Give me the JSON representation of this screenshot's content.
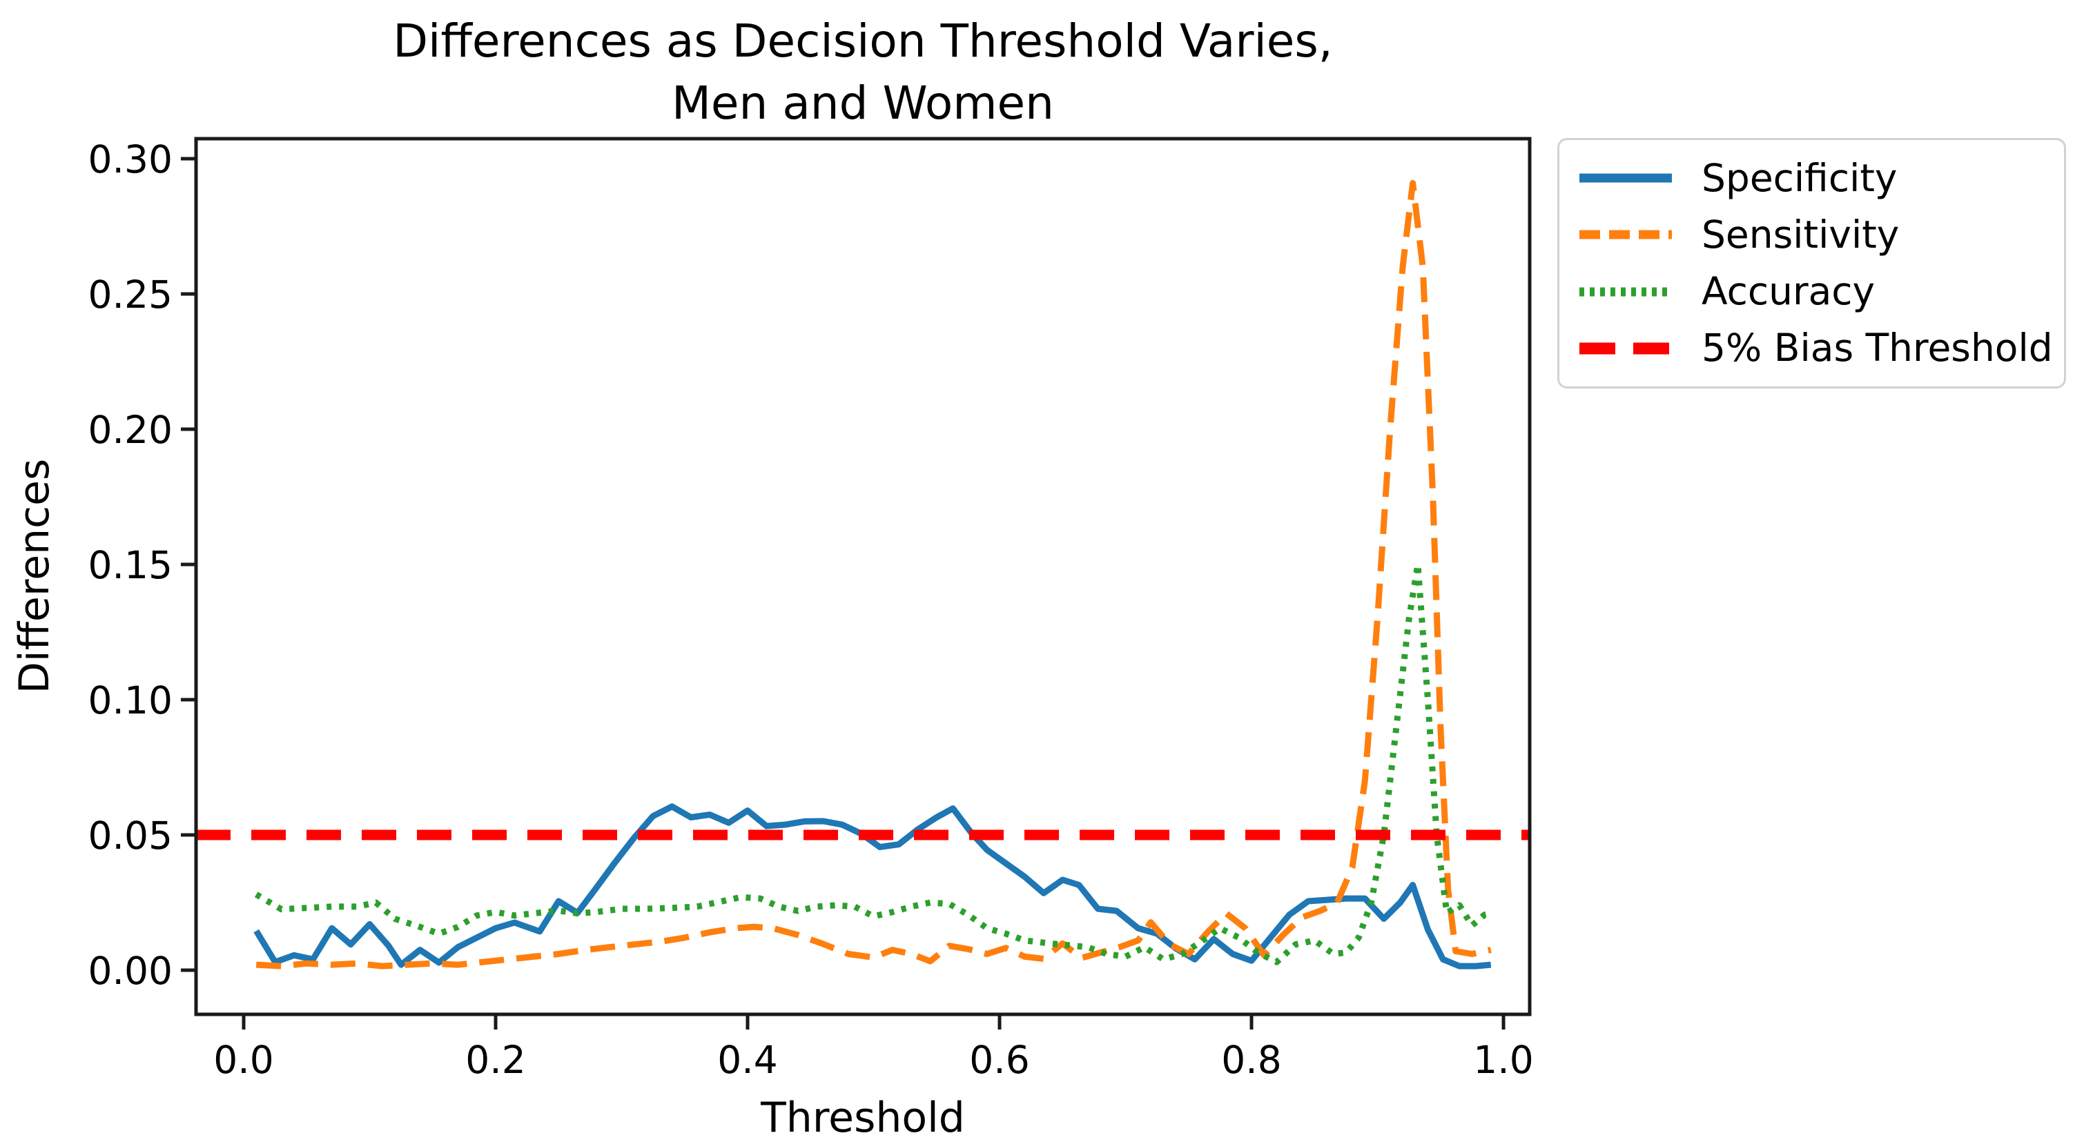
{
  "figure": {
    "title_line1": "Differences as Decision Threshold Varies,",
    "title_line2": "Men and Women",
    "xlabel": "Threshold",
    "ylabel": "Differences"
  },
  "colors": {
    "specificity": "#1f77b4",
    "sensitivity": "#ff7f0e",
    "accuracy": "#2ca02c",
    "bias_threshold": "#ff0000",
    "axis": "#1a1a1a",
    "legend_border": "#d2d2d2"
  },
  "legend": {
    "items": [
      {
        "label": "Specificity",
        "color": "#1f77b4",
        "style": "solid"
      },
      {
        "label": "Sensitivity",
        "color": "#ff7f0e",
        "style": "dashed"
      },
      {
        "label": "Accuracy",
        "color": "#2ca02c",
        "style": "dotted"
      },
      {
        "label": "5% Bias Threshold",
        "color": "#ff0000",
        "style": "dashed-bold"
      }
    ]
  },
  "chart_data": {
    "type": "line",
    "title": "Differences as Decision Threshold Varies, Men and Women",
    "xlabel": "Threshold",
    "ylabel": "Differences",
    "xlim": [
      -0.0378,
      1.0208
    ],
    "ylim": [
      -0.01633,
      0.3074
    ],
    "xticks": [
      0.0,
      0.2,
      0.4,
      0.6,
      0.8,
      1.0
    ],
    "xtick_labels": [
      "0.0",
      "0.2",
      "0.4",
      "0.6",
      "0.8",
      "1.0"
    ],
    "yticks": [
      0.0,
      0.05,
      0.1,
      0.15,
      0.2,
      0.25,
      0.3
    ],
    "ytick_labels": [
      "0.00",
      "0.05",
      "0.10",
      "0.15",
      "0.20",
      "0.25",
      "0.30"
    ],
    "grid": false,
    "legend_position": "outside-upper-right",
    "threshold_line": {
      "name": "5% Bias Threshold",
      "y": 0.05,
      "color": "#ff0000",
      "style": "dashed-bold"
    },
    "series": [
      {
        "name": "Specificity",
        "color": "#1f77b4",
        "style": "solid",
        "points": [
          [
            0.01,
            0.0145
          ],
          [
            0.025,
            0.003
          ],
          [
            0.04,
            0.0055
          ],
          [
            0.055,
            0.004
          ],
          [
            0.07,
            0.0155
          ],
          [
            0.085,
            0.0095
          ],
          [
            0.1,
            0.017
          ],
          [
            0.115,
            0.009
          ],
          [
            0.125,
            0.002
          ],
          [
            0.14,
            0.0075
          ],
          [
            0.155,
            0.0028
          ],
          [
            0.17,
            0.0085
          ],
          [
            0.185,
            0.012
          ],
          [
            0.2,
            0.0155
          ],
          [
            0.215,
            0.0176
          ],
          [
            0.235,
            0.0143
          ],
          [
            0.25,
            0.0255
          ],
          [
            0.265,
            0.0212
          ],
          [
            0.28,
            0.0305
          ],
          [
            0.295,
            0.04
          ],
          [
            0.31,
            0.049
          ],
          [
            0.325,
            0.057
          ],
          [
            0.34,
            0.0605
          ],
          [
            0.355,
            0.0565
          ],
          [
            0.37,
            0.0575
          ],
          [
            0.385,
            0.0545
          ],
          [
            0.4,
            0.059
          ],
          [
            0.415,
            0.0533
          ],
          [
            0.43,
            0.0538
          ],
          [
            0.445,
            0.055
          ],
          [
            0.46,
            0.0551
          ],
          [
            0.475,
            0.0538
          ],
          [
            0.49,
            0.0505
          ],
          [
            0.505,
            0.0455
          ],
          [
            0.52,
            0.0465
          ],
          [
            0.535,
            0.052
          ],
          [
            0.55,
            0.0565
          ],
          [
            0.563,
            0.0598
          ],
          [
            0.578,
            0.0505
          ],
          [
            0.59,
            0.0445
          ],
          [
            0.605,
            0.0395
          ],
          [
            0.62,
            0.0345
          ],
          [
            0.635,
            0.0285
          ],
          [
            0.65,
            0.0334
          ],
          [
            0.663,
            0.0315
          ],
          [
            0.678,
            0.0227
          ],
          [
            0.693,
            0.0219
          ],
          [
            0.71,
            0.0155
          ],
          [
            0.725,
            0.0135
          ],
          [
            0.74,
            0.008
          ],
          [
            0.755,
            0.004
          ],
          [
            0.77,
            0.0115
          ],
          [
            0.785,
            0.006
          ],
          [
            0.8,
            0.0035
          ],
          [
            0.815,
            0.012
          ],
          [
            0.83,
            0.0205
          ],
          [
            0.845,
            0.0255
          ],
          [
            0.86,
            0.026
          ],
          [
            0.875,
            0.0265
          ],
          [
            0.89,
            0.0265
          ],
          [
            0.905,
            0.019
          ],
          [
            0.918,
            0.025
          ],
          [
            0.928,
            0.0315
          ],
          [
            0.94,
            0.015
          ],
          [
            0.952,
            0.004
          ],
          [
            0.965,
            0.0015
          ],
          [
            0.978,
            0.0015
          ],
          [
            0.99,
            0.002
          ]
        ]
      },
      {
        "name": "Sensitivity",
        "color": "#ff7f0e",
        "style": "dashed",
        "points": [
          [
            0.01,
            0.002
          ],
          [
            0.03,
            0.0015
          ],
          [
            0.05,
            0.0025
          ],
          [
            0.07,
            0.002
          ],
          [
            0.09,
            0.0025
          ],
          [
            0.11,
            0.0015
          ],
          [
            0.13,
            0.002
          ],
          [
            0.15,
            0.0025
          ],
          [
            0.17,
            0.002
          ],
          [
            0.19,
            0.003
          ],
          [
            0.21,
            0.004
          ],
          [
            0.23,
            0.005
          ],
          [
            0.25,
            0.006
          ],
          [
            0.27,
            0.0074
          ],
          [
            0.29,
            0.0085
          ],
          [
            0.31,
            0.0095
          ],
          [
            0.33,
            0.0105
          ],
          [
            0.35,
            0.012
          ],
          [
            0.37,
            0.014
          ],
          [
            0.39,
            0.0155
          ],
          [
            0.405,
            0.016
          ],
          [
            0.42,
            0.0155
          ],
          [
            0.44,
            0.013
          ],
          [
            0.46,
            0.0097
          ],
          [
            0.48,
            0.006
          ],
          [
            0.5,
            0.0047
          ],
          [
            0.515,
            0.0075
          ],
          [
            0.53,
            0.006
          ],
          [
            0.545,
            0.0033
          ],
          [
            0.56,
            0.009
          ],
          [
            0.575,
            0.0078
          ],
          [
            0.59,
            0.006
          ],
          [
            0.605,
            0.0082
          ],
          [
            0.62,
            0.005
          ],
          [
            0.635,
            0.0042
          ],
          [
            0.65,
            0.0099
          ],
          [
            0.665,
            0.0045
          ],
          [
            0.68,
            0.0065
          ],
          [
            0.695,
            0.0085
          ],
          [
            0.71,
            0.011
          ],
          [
            0.72,
            0.0177
          ],
          [
            0.735,
            0.0095
          ],
          [
            0.75,
            0.006
          ],
          [
            0.765,
            0.014
          ],
          [
            0.78,
            0.021
          ],
          [
            0.795,
            0.0155
          ],
          [
            0.81,
            0.0055
          ],
          [
            0.825,
            0.013
          ],
          [
            0.84,
            0.0195
          ],
          [
            0.855,
            0.022
          ],
          [
            0.868,
            0.025
          ],
          [
            0.88,
            0.038
          ],
          [
            0.89,
            0.07
          ],
          [
            0.9,
            0.13
          ],
          [
            0.91,
            0.2
          ],
          [
            0.92,
            0.26
          ],
          [
            0.928,
            0.291
          ],
          [
            0.936,
            0.26
          ],
          [
            0.944,
            0.175
          ],
          [
            0.95,
            0.09
          ],
          [
            0.956,
            0.03
          ],
          [
            0.962,
            0.007
          ],
          [
            0.975,
            0.006
          ],
          [
            0.99,
            0.0075
          ]
        ]
      },
      {
        "name": "Accuracy",
        "color": "#2ca02c",
        "style": "dotted",
        "points": [
          [
            0.01,
            0.028
          ],
          [
            0.03,
            0.0225
          ],
          [
            0.05,
            0.023
          ],
          [
            0.07,
            0.0235
          ],
          [
            0.09,
            0.0235
          ],
          [
            0.105,
            0.025
          ],
          [
            0.12,
            0.019
          ],
          [
            0.14,
            0.016
          ],
          [
            0.155,
            0.0135
          ],
          [
            0.17,
            0.016
          ],
          [
            0.185,
            0.0202
          ],
          [
            0.2,
            0.0215
          ],
          [
            0.215,
            0.0202
          ],
          [
            0.23,
            0.021
          ],
          [
            0.25,
            0.022
          ],
          [
            0.265,
            0.021
          ],
          [
            0.28,
            0.0215
          ],
          [
            0.3,
            0.0227
          ],
          [
            0.32,
            0.0227
          ],
          [
            0.34,
            0.023
          ],
          [
            0.36,
            0.0235
          ],
          [
            0.375,
            0.025
          ],
          [
            0.395,
            0.027
          ],
          [
            0.41,
            0.0265
          ],
          [
            0.425,
            0.0235
          ],
          [
            0.44,
            0.0219
          ],
          [
            0.455,
            0.0235
          ],
          [
            0.47,
            0.024
          ],
          [
            0.485,
            0.0235
          ],
          [
            0.5,
            0.0199
          ],
          [
            0.515,
            0.0215
          ],
          [
            0.53,
            0.0235
          ],
          [
            0.545,
            0.025
          ],
          [
            0.56,
            0.0245
          ],
          [
            0.575,
            0.0205
          ],
          [
            0.59,
            0.0155
          ],
          [
            0.605,
            0.0135
          ],
          [
            0.62,
            0.011
          ],
          [
            0.64,
            0.0099
          ],
          [
            0.655,
            0.0092
          ],
          [
            0.67,
            0.0085
          ],
          [
            0.685,
            0.006
          ],
          [
            0.7,
            0.005
          ],
          [
            0.715,
            0.0085
          ],
          [
            0.73,
            0.004
          ],
          [
            0.745,
            0.006
          ],
          [
            0.76,
            0.0105
          ],
          [
            0.775,
            0.0155
          ],
          [
            0.79,
            0.012
          ],
          [
            0.805,
            0.0065
          ],
          [
            0.82,
            0.003
          ],
          [
            0.835,
            0.0095
          ],
          [
            0.85,
            0.011
          ],
          [
            0.865,
            0.006
          ],
          [
            0.875,
            0.0065
          ],
          [
            0.885,
            0.012
          ],
          [
            0.895,
            0.025
          ],
          [
            0.905,
            0.05
          ],
          [
            0.915,
            0.09
          ],
          [
            0.925,
            0.13
          ],
          [
            0.932,
            0.15
          ],
          [
            0.94,
            0.1
          ],
          [
            0.947,
            0.05
          ],
          [
            0.955,
            0.0212
          ],
          [
            0.965,
            0.024
          ],
          [
            0.975,
            0.0165
          ],
          [
            0.985,
            0.0205
          ],
          [
            0.99,
            0.021
          ]
        ]
      }
    ]
  }
}
